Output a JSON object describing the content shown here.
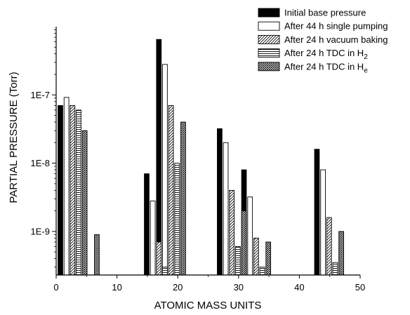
{
  "chart_data": {
    "type": "bar",
    "xlabel": "ATOMIC MASS UNITS",
    "ylabel": "PARTIAL PRESSURE (Torr)",
    "xlim": [
      0,
      50
    ],
    "ylim": [
      2.3e-10,
      1e-06
    ],
    "yscale": "log",
    "grid": false,
    "legend_position": "top-right",
    "x_ticks": [
      0,
      10,
      20,
      30,
      40,
      50
    ],
    "x_tick_labels": [
      "0",
      "10",
      "20",
      "30",
      "40",
      "50"
    ],
    "y_ticks": [
      1e-09,
      1e-08,
      1e-07
    ],
    "y_tick_labels": [
      "1E-9",
      "1E-8",
      "1E-7"
    ],
    "series": [
      {
        "name": "Initial base pressure",
        "pattern": "solid",
        "points": [
          {
            "x": 0.3,
            "y": 7e-08
          },
          {
            "x": 2.3,
            "y": 4e-10
          },
          {
            "x": 14.5,
            "y": 7e-09
          },
          {
            "x": 16.5,
            "y": 6.5e-07
          },
          {
            "x": 26.5,
            "y": 3.2e-08
          },
          {
            "x": 30.5,
            "y": 8e-09
          },
          {
            "x": 42.5,
            "y": 1.6e-08
          }
        ]
      },
      {
        "name": "After 44 h single pumping",
        "pattern": "open",
        "points": [
          {
            "x": 1.3,
            "y": 9.2e-08
          },
          {
            "x": 15.5,
            "y": 2.8e-09
          },
          {
            "x": 17.5,
            "y": 2.8e-07
          },
          {
            "x": 27.5,
            "y": 2e-08
          },
          {
            "x": 31.5,
            "y": 3.2e-09
          },
          {
            "x": 43.5,
            "y": 8e-09
          }
        ]
      },
      {
        "name": "After 24 h vacuum baking",
        "pattern": "diagonal",
        "points": [
          {
            "x": 2.3,
            "y": 7e-08
          },
          {
            "x": 16.5,
            "y": 7e-10
          },
          {
            "x": 18.5,
            "y": 7e-08
          },
          {
            "x": 28.5,
            "y": 4e-09
          },
          {
            "x": 32.5,
            "y": 8e-10
          },
          {
            "x": 44.5,
            "y": 1.6e-09
          }
        ]
      },
      {
        "name": "After 24 h TDC in H",
        "name_subscript": "2",
        "pattern": "horizontal",
        "points": [
          {
            "x": 3.3,
            "y": 6e-08
          },
          {
            "x": 17.5,
            "y": 3e-10
          },
          {
            "x": 19.5,
            "y": 1e-08
          },
          {
            "x": 29.5,
            "y": 6e-10
          },
          {
            "x": 33.5,
            "y": 3e-10
          },
          {
            "x": 45.5,
            "y": 3.5e-10
          }
        ]
      },
      {
        "name": "After 24 h TDC in H",
        "name_subscript": "e",
        "pattern": "crosshatch",
        "points": [
          {
            "x": 4.3,
            "y": 3e-08
          },
          {
            "x": 6.3,
            "y": 9e-10
          },
          {
            "x": 20.5,
            "y": 4e-08
          },
          {
            "x": 30.5,
            "y": 2e-09
          },
          {
            "x": 34.5,
            "y": 7e-10
          },
          {
            "x": 46.5,
            "y": 1e-09
          }
        ]
      }
    ]
  }
}
